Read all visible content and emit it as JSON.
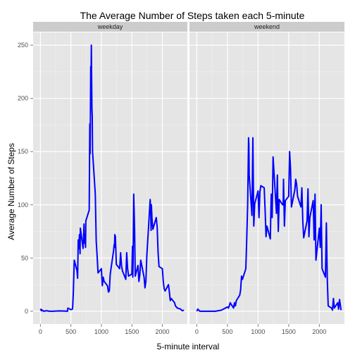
{
  "chart_data": {
    "type": "line",
    "title": "The Average Number of Steps taken each 5-minute",
    "xlabel": "5-minute interval",
    "ylabel": "Average Number of Steps",
    "xlim": [
      -120,
      2410
    ],
    "ylim": [
      -12,
      262
    ],
    "x_ticks": [
      0,
      500,
      1000,
      1500,
      2000
    ],
    "y_ticks": [
      0,
      50,
      100,
      150,
      200,
      250
    ],
    "x_tick_labels": [
      "0",
      "500",
      "1000",
      "1500",
      "2000"
    ],
    "y_tick_labels": [
      "0",
      "50",
      "100",
      "150",
      "200",
      "250"
    ],
    "grid": true,
    "line_color": "#0000ff",
    "panels": [
      {
        "name": "weekday",
        "x": [
          0,
          15,
          20,
          50,
          100,
          150,
          200,
          300,
          400,
          445,
          450,
          500,
          525,
          530,
          540,
          545,
          555,
          600,
          610,
          620,
          630,
          640,
          650,
          655,
          700,
          715,
          720,
          730,
          740,
          745,
          800,
          810,
          815,
          820,
          825,
          830,
          835,
          840,
          845,
          850,
          855,
          900,
          915,
          930,
          945,
          1000,
          1015,
          1030,
          1045,
          1100,
          1115,
          1130,
          1145,
          1200,
          1210,
          1215,
          1220,
          1230,
          1245,
          1300,
          1315,
          1330,
          1345,
          1400,
          1415,
          1430,
          1445,
          1500,
          1510,
          1515,
          1520,
          1530,
          1545,
          1555,
          1600,
          1615,
          1630,
          1645,
          1700,
          1715,
          1730,
          1745,
          1800,
          1810,
          1815,
          1820,
          1830,
          1845,
          1900,
          1915,
          1930,
          1945,
          2000,
          2015,
          2030,
          2045,
          2100,
          2115,
          2130,
          2145,
          2200,
          2215,
          2230,
          2245,
          2300,
          2315,
          2330,
          2355
        ],
        "y": [
          2.3,
          0.5,
          1.5,
          0,
          0.5,
          0,
          0,
          0.3,
          0.2,
          0,
          3,
          1.5,
          2,
          5,
          18,
          28,
          48,
          38,
          31,
          67,
          59,
          72,
          54,
          78,
          59,
          82,
          64,
          72,
          60,
          85,
          95,
          176,
          148,
          183,
          230,
          209,
          250,
          218,
          190,
          183,
          150,
          110,
          66,
          52,
          36,
          40,
          24,
          32,
          28,
          24,
          18,
          19,
          35,
          57,
          63,
          60,
          72,
          70,
          44,
          40,
          55,
          43,
          38,
          30,
          55,
          40,
          33,
          35,
          61,
          32,
          46,
          110,
          76,
          33,
          43,
          28,
          34,
          48,
          32,
          22,
          28,
          52,
          105,
          91,
          76,
          100,
          87,
          77,
          88,
          79,
          55,
          42,
          40,
          28,
          21,
          19,
          25,
          18,
          10,
          12,
          8,
          5,
          4,
          3,
          2,
          1,
          0.5,
          1
        ]
      },
      {
        "name": "weekend",
        "x": [
          0,
          15,
          50,
          100,
          200,
          300,
          400,
          500,
          515,
          530,
          545,
          600,
          615,
          630,
          645,
          700,
          715,
          730,
          745,
          800,
          815,
          830,
          845,
          850,
          855,
          900,
          915,
          930,
          945,
          1000,
          1015,
          1030,
          1045,
          1100,
          1115,
          1130,
          1145,
          1200,
          1210,
          1215,
          1230,
          1245,
          1300,
          1315,
          1330,
          1345,
          1400,
          1410,
          1415,
          1430,
          1445,
          1500,
          1515,
          1530,
          1545,
          1600,
          1615,
          1630,
          1645,
          1700,
          1715,
          1730,
          1745,
          1800,
          1815,
          1830,
          1845,
          1900,
          1915,
          1930,
          1945,
          2000,
          2015,
          2030,
          2045,
          2100,
          2115,
          2130,
          2145,
          2200,
          2215,
          2230,
          2245,
          2300,
          2315,
          2330,
          2355
        ],
        "y": [
          0,
          2,
          0,
          0,
          0,
          0,
          1,
          4,
          3,
          5,
          8,
          3,
          8,
          5,
          10,
          15,
          20,
          33,
          30,
          40,
          68,
          100,
          163,
          156,
          128,
          90,
          163,
          80,
          101,
          113,
          88,
          112,
          118,
          116,
          95,
          70,
          80,
          68,
          97,
          110,
          88,
          145,
          92,
          128,
          75,
          105,
          100,
          100,
          124,
          80,
          104,
          108,
          150,
          134,
          98,
          114,
          124,
          119,
          108,
          98,
          116,
          85,
          69,
          85,
          115,
          70,
          88,
          104,
          67,
          110,
          48,
          78,
          60,
          100,
          40,
          32,
          83,
          30,
          5,
          3,
          1,
          12,
          3,
          8,
          2,
          11,
          1
        ]
      }
    ]
  }
}
